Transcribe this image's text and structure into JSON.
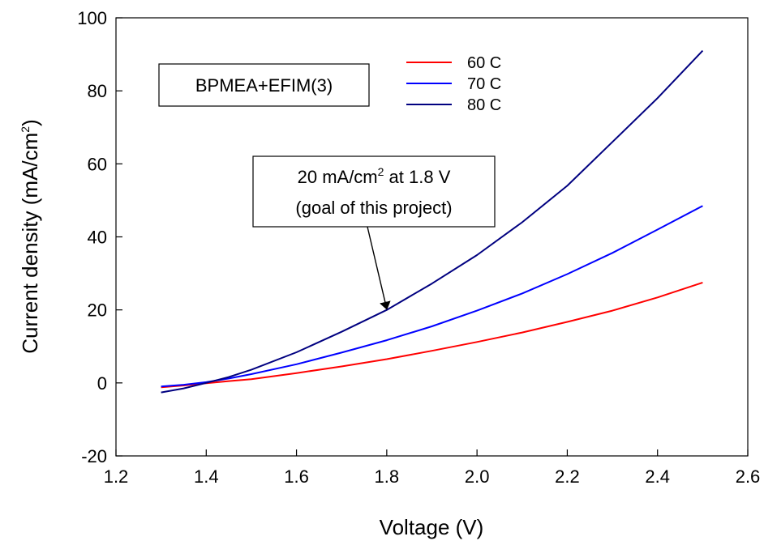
{
  "chart_data": {
    "type": "line",
    "title": "",
    "xlabel": "Voltage (V)",
    "ylabel_main": "Current density (mA/cm",
    "ylabel_sup": "2",
    "ylabel_end": ")",
    "xlim": [
      1.2,
      2.6
    ],
    "ylim": [
      -20,
      100
    ],
    "xticks": [
      "1.2",
      "1.4",
      "1.6",
      "1.8",
      "2.0",
      "2.2",
      "2.4",
      "2.6"
    ],
    "yticks": [
      "-20",
      "0",
      "20",
      "40",
      "60",
      "80",
      "100"
    ],
    "grid": false,
    "legend_position": "top-center",
    "series": [
      {
        "name": "60 C",
        "color": "#ff0000",
        "x": [
          1.3,
          1.35,
          1.4,
          1.45,
          1.5,
          1.6,
          1.7,
          1.8,
          1.9,
          2.0,
          2.1,
          2.2,
          2.3,
          2.4,
          2.5
        ],
        "y": [
          -1.2,
          -0.7,
          -0.1,
          0.5,
          1.0,
          2.7,
          4.5,
          6.5,
          8.8,
          11.2,
          13.8,
          16.7,
          19.8,
          23.4,
          27.5
        ]
      },
      {
        "name": "70 C",
        "color": "#0000ff",
        "x": [
          1.3,
          1.35,
          1.4,
          1.45,
          1.5,
          1.6,
          1.7,
          1.8,
          1.9,
          2.0,
          2.1,
          2.2,
          2.3,
          2.4,
          2.5
        ],
        "y": [
          -1.0,
          -0.5,
          0.2,
          1.2,
          2.4,
          5.1,
          8.3,
          11.7,
          15.5,
          19.8,
          24.5,
          29.8,
          35.6,
          42.0,
          48.5
        ]
      },
      {
        "name": "80 C",
        "color": "#000080",
        "x": [
          1.3,
          1.35,
          1.4,
          1.45,
          1.5,
          1.6,
          1.7,
          1.8,
          1.9,
          2.0,
          2.1,
          2.2,
          2.3,
          2.4,
          2.5
        ],
        "y": [
          -2.6,
          -1.5,
          0.0,
          1.6,
          3.6,
          8.4,
          14.0,
          20.0,
          27.2,
          35.0,
          44.0,
          54.0,
          66.0,
          78.0,
          91.0
        ]
      }
    ],
    "box_label": "BPMEA+EFIM(3)",
    "annotation": {
      "line1_pre": "20 mA/cm",
      "line1_sup": "2",
      "line1_post": " at 1.8 V",
      "line2": "(goal of this project)",
      "target_x": 1.8,
      "target_y": 20
    }
  }
}
